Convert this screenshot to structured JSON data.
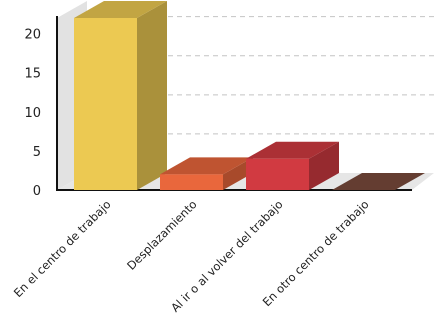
{
  "chart_data": {
    "type": "bar",
    "style": "3d",
    "categories": [
      "En el centro de trabajo",
      "Desplazamiento",
      "Al ir o al volver del trabajo",
      "En otro centro de trabajo"
    ],
    "values": [
      22,
      2,
      4,
      0
    ],
    "colors": [
      "#ecc952",
      "#e9673c",
      "#d13a41",
      "#7a4a3c"
    ],
    "ylim": [
      0,
      22
    ],
    "yticks": [
      0,
      5,
      10,
      15,
      20
    ],
    "grid": true,
    "title": "",
    "xlabel": "",
    "ylabel": ""
  }
}
